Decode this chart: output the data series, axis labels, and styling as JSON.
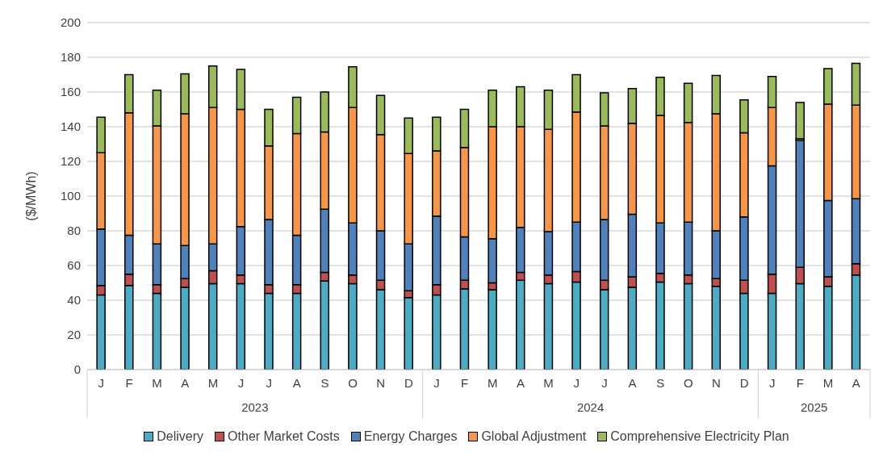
{
  "chart_data": {
    "type": "bar",
    "stacked": true,
    "ylabel": "($/MWh)",
    "categories": [
      "J",
      "F",
      "M",
      "A",
      "M",
      "J",
      "J",
      "A",
      "S",
      "O",
      "N",
      "D",
      "J",
      "F",
      "M",
      "A",
      "M",
      "J",
      "J",
      "A",
      "S",
      "O",
      "N",
      "D",
      "J",
      "F",
      "M",
      "A"
    ],
    "annotations": [
      "2023",
      "2024",
      "2025"
    ],
    "series": [
      {
        "name": "Delivery",
        "color": "#4bacc6",
        "values": [
          43,
          48.5,
          44,
          47.5,
          49.5,
          49.5,
          44,
          44,
          51,
          49.5,
          46,
          41.5,
          43,
          46.5,
          46,
          51.5,
          49.5,
          50.5,
          46,
          47.5,
          50.5,
          49.5,
          48,
          44,
          44,
          49.5,
          48,
          54.5
        ]
      },
      {
        "name": "Other Market Costs",
        "color": "#c0504d",
        "values": [
          5.5,
          6.5,
          5,
          5,
          7.5,
          5,
          5,
          5,
          5,
          5,
          5.5,
          4,
          6,
          5,
          4,
          4.5,
          5,
          6,
          5.5,
          6,
          5,
          5,
          4.5,
          7.5,
          11,
          9.5,
          5.5,
          6.5
        ]
      },
      {
        "name": "Energy Charges",
        "color": "#4f81bd",
        "values": [
          32.5,
          22.5,
          23.5,
          19,
          15.5,
          28,
          37.5,
          28.5,
          36.5,
          30,
          28.5,
          27,
          39.5,
          25,
          25.5,
          26,
          25,
          28.5,
          35,
          36,
          29,
          30.5,
          27.5,
          36.5,
          62.5,
          73,
          44,
          37.5
        ]
      },
      {
        "name": "Global Adjustment",
        "color": "#f79646",
        "values": [
          44,
          70.5,
          68,
          76,
          78.5,
          67.5,
          42.5,
          58.5,
          44.5,
          66.5,
          55.5,
          52,
          37.5,
          51.5,
          64.5,
          58,
          59,
          63.5,
          54,
          52.5,
          62,
          57.5,
          67.5,
          48.5,
          33.5,
          1,
          55.5,
          54
        ]
      },
      {
        "name": "Comprehensive Electricity Plan",
        "color": "#9bbb59",
        "values": [
          20.5,
          22,
          20.5,
          23,
          24,
          23,
          21,
          21,
          23,
          23.5,
          22.5,
          20.5,
          19.5,
          22,
          21,
          23,
          22.5,
          21.5,
          19,
          20,
          22,
          22.5,
          22,
          19,
          18,
          21,
          20.5,
          24
        ]
      }
    ],
    "ylim": [
      0,
      200
    ],
    "yticks": [
      0,
      20,
      40,
      60,
      80,
      100,
      120,
      140,
      160,
      180,
      200
    ],
    "grid": "y",
    "legend": "bottom"
  }
}
